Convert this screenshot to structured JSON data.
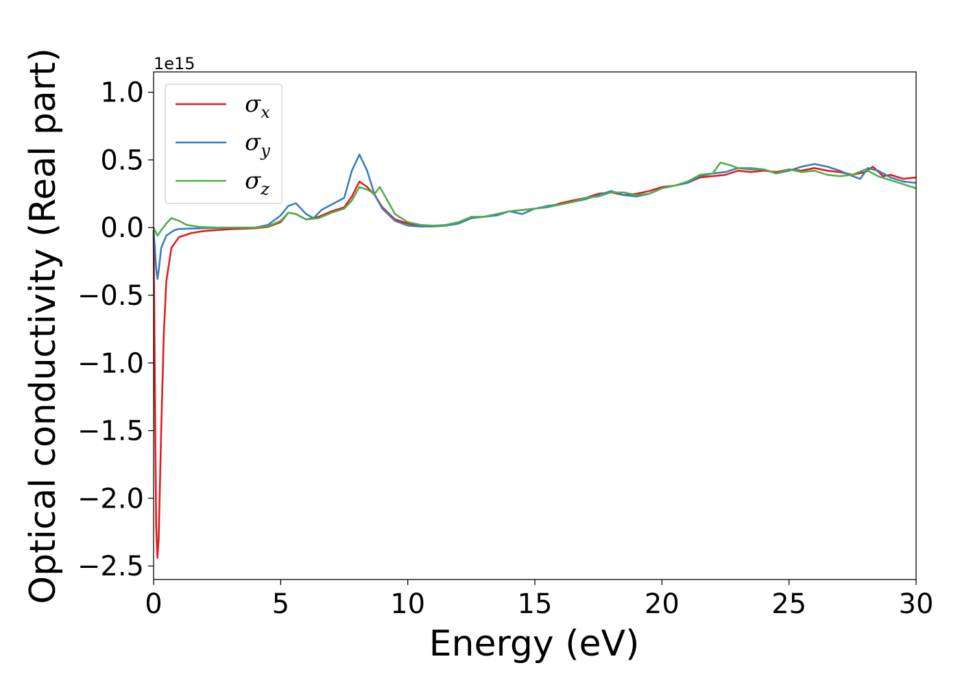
{
  "chart_data": {
    "type": "line",
    "title": "",
    "xlabel": "Energy (eV)",
    "ylabel": "Optical conductivity (Real part)",
    "y_offset_text": "1e15",
    "xlim": [
      0,
      30
    ],
    "ylim": [
      -2.6,
      1.15
    ],
    "x_ticks": [
      0,
      5,
      10,
      15,
      20,
      25,
      30
    ],
    "x_tick_labels": [
      "0",
      "5",
      "10",
      "15",
      "20",
      "25",
      "30"
    ],
    "y_ticks": [
      1.0,
      0.5,
      0.0,
      -0.5,
      -1.0,
      -1.5,
      -2.0,
      -2.5
    ],
    "y_tick_labels": [
      "1.0",
      "0.5",
      "0.0",
      "−0.5",
      "−1.0",
      "−1.5",
      "−2.0",
      "−2.5"
    ],
    "grid": false,
    "legend_position": "top-left",
    "series": [
      {
        "name": "σ",
        "subscript": "x",
        "color": "#e41a1c",
        "points": [
          [
            0,
            -0.02
          ],
          [
            0.05,
            -1.2
          ],
          [
            0.1,
            -2.2
          ],
          [
            0.15,
            -2.44
          ],
          [
            0.2,
            -2.3
          ],
          [
            0.3,
            -1.5
          ],
          [
            0.4,
            -0.8
          ],
          [
            0.5,
            -0.4
          ],
          [
            0.7,
            -0.15
          ],
          [
            1.0,
            -0.07
          ],
          [
            1.5,
            -0.04
          ],
          [
            2,
            -0.025
          ],
          [
            3,
            -0.012
          ],
          [
            4,
            -0.005
          ],
          [
            4.5,
            0.005
          ],
          [
            5,
            0.04
          ],
          [
            5.3,
            0.11
          ],
          [
            5.6,
            0.1
          ],
          [
            6,
            0.06
          ],
          [
            6.5,
            0.08
          ],
          [
            7,
            0.12
          ],
          [
            7.5,
            0.15
          ],
          [
            7.8,
            0.23
          ],
          [
            8.1,
            0.34
          ],
          [
            8.4,
            0.3
          ],
          [
            8.7,
            0.24
          ],
          [
            9,
            0.15
          ],
          [
            9.5,
            0.06
          ],
          [
            10,
            0.03
          ],
          [
            10.5,
            0.015
          ],
          [
            11,
            0.01
          ],
          [
            11.5,
            0.015
          ],
          [
            12,
            0.03
          ],
          [
            12.5,
            0.07
          ],
          [
            13,
            0.08
          ],
          [
            13.5,
            0.1
          ],
          [
            14,
            0.12
          ],
          [
            14.5,
            0.13
          ],
          [
            15,
            0.14
          ],
          [
            15.5,
            0.15
          ],
          [
            16,
            0.18
          ],
          [
            16.5,
            0.2
          ],
          [
            17,
            0.22
          ],
          [
            17.5,
            0.25
          ],
          [
            18,
            0.26
          ],
          [
            18.5,
            0.24
          ],
          [
            19,
            0.25
          ],
          [
            19.5,
            0.27
          ],
          [
            20,
            0.3
          ],
          [
            20.5,
            0.31
          ],
          [
            21,
            0.33
          ],
          [
            21.5,
            0.37
          ],
          [
            22,
            0.38
          ],
          [
            22.5,
            0.39
          ],
          [
            23,
            0.42
          ],
          [
            23.5,
            0.41
          ],
          [
            24,
            0.42
          ],
          [
            24.5,
            0.41
          ],
          [
            25,
            0.43
          ],
          [
            25.5,
            0.42
          ],
          [
            26,
            0.44
          ],
          [
            26.5,
            0.42
          ],
          [
            27,
            0.41
          ],
          [
            27.5,
            0.39
          ],
          [
            28,
            0.41
          ],
          [
            28.3,
            0.45
          ],
          [
            28.7,
            0.38
          ],
          [
            29,
            0.39
          ],
          [
            29.5,
            0.36
          ],
          [
            30,
            0.37
          ]
        ]
      },
      {
        "name": "σ",
        "subscript": "y",
        "color": "#377eb8",
        "points": [
          [
            0,
            -0.02
          ],
          [
            0.05,
            -0.15
          ],
          [
            0.1,
            -0.3
          ],
          [
            0.15,
            -0.38
          ],
          [
            0.2,
            -0.32
          ],
          [
            0.3,
            -0.15
          ],
          [
            0.5,
            -0.06
          ],
          [
            0.8,
            -0.02
          ],
          [
            1.0,
            -0.01
          ],
          [
            2,
            -0.005
          ],
          [
            3,
            -0.002
          ],
          [
            4,
            0.0
          ],
          [
            4.5,
            0.02
          ],
          [
            5,
            0.09
          ],
          [
            5.3,
            0.16
          ],
          [
            5.6,
            0.18
          ],
          [
            6,
            0.1
          ],
          [
            6.3,
            0.07
          ],
          [
            6.6,
            0.13
          ],
          [
            7,
            0.17
          ],
          [
            7.5,
            0.22
          ],
          [
            7.8,
            0.42
          ],
          [
            8.1,
            0.54
          ],
          [
            8.4,
            0.42
          ],
          [
            8.7,
            0.24
          ],
          [
            9,
            0.14
          ],
          [
            9.5,
            0.05
          ],
          [
            10,
            0.015
          ],
          [
            10.5,
            0.008
          ],
          [
            11,
            0.008
          ],
          [
            11.5,
            0.015
          ],
          [
            12,
            0.03
          ],
          [
            12.5,
            0.07
          ],
          [
            13,
            0.08
          ],
          [
            13.5,
            0.09
          ],
          [
            14,
            0.12
          ],
          [
            14.5,
            0.1
          ],
          [
            15,
            0.14
          ],
          [
            15.5,
            0.16
          ],
          [
            16,
            0.17
          ],
          [
            16.5,
            0.19
          ],
          [
            17,
            0.21
          ],
          [
            17.5,
            0.24
          ],
          [
            18,
            0.27
          ],
          [
            18.5,
            0.24
          ],
          [
            19,
            0.23
          ],
          [
            19.5,
            0.25
          ],
          [
            20,
            0.29
          ],
          [
            20.5,
            0.31
          ],
          [
            21,
            0.33
          ],
          [
            21.5,
            0.38
          ],
          [
            22,
            0.4
          ],
          [
            22.5,
            0.41
          ],
          [
            23,
            0.44
          ],
          [
            23.5,
            0.43
          ],
          [
            24,
            0.43
          ],
          [
            24.5,
            0.4
          ],
          [
            25,
            0.42
          ],
          [
            25.5,
            0.45
          ],
          [
            26,
            0.47
          ],
          [
            26.5,
            0.45
          ],
          [
            27,
            0.42
          ],
          [
            27.5,
            0.38
          ],
          [
            27.8,
            0.36
          ],
          [
            28.1,
            0.44
          ],
          [
            28.5,
            0.42
          ],
          [
            29,
            0.37
          ],
          [
            29.5,
            0.34
          ],
          [
            30,
            0.33
          ]
        ]
      },
      {
        "name": "σ",
        "subscript": "z",
        "color": "#4daf4a",
        "points": [
          [
            0,
            0.0
          ],
          [
            0.05,
            -0.02
          ],
          [
            0.15,
            -0.06
          ],
          [
            0.3,
            -0.02
          ],
          [
            0.5,
            0.03
          ],
          [
            0.7,
            0.07
          ],
          [
            1.0,
            0.05
          ],
          [
            1.3,
            0.02
          ],
          [
            1.8,
            0.005
          ],
          [
            2.5,
            0.0
          ],
          [
            3,
            0.0
          ],
          [
            4,
            0.0
          ],
          [
            4.5,
            0.01
          ],
          [
            5,
            0.05
          ],
          [
            5.3,
            0.11
          ],
          [
            5.6,
            0.1
          ],
          [
            6,
            0.06
          ],
          [
            6.5,
            0.07
          ],
          [
            7,
            0.11
          ],
          [
            7.5,
            0.14
          ],
          [
            7.8,
            0.2
          ],
          [
            8.1,
            0.3
          ],
          [
            8.4,
            0.28
          ],
          [
            8.7,
            0.25
          ],
          [
            8.9,
            0.3
          ],
          [
            9.2,
            0.2
          ],
          [
            9.5,
            0.1
          ],
          [
            10,
            0.04
          ],
          [
            10.5,
            0.02
          ],
          [
            11,
            0.015
          ],
          [
            11.5,
            0.02
          ],
          [
            12,
            0.04
          ],
          [
            12.5,
            0.08
          ],
          [
            13,
            0.08
          ],
          [
            13.5,
            0.1
          ],
          [
            14,
            0.12
          ],
          [
            14.5,
            0.13
          ],
          [
            15,
            0.14
          ],
          [
            15.5,
            0.15
          ],
          [
            16,
            0.17
          ],
          [
            16.5,
            0.19
          ],
          [
            17,
            0.22
          ],
          [
            17.5,
            0.23
          ],
          [
            18,
            0.26
          ],
          [
            18.5,
            0.26
          ],
          [
            19,
            0.24
          ],
          [
            19.5,
            0.25
          ],
          [
            20,
            0.29
          ],
          [
            20.5,
            0.31
          ],
          [
            21,
            0.34
          ],
          [
            21.5,
            0.39
          ],
          [
            22,
            0.4
          ],
          [
            22.3,
            0.48
          ],
          [
            22.7,
            0.46
          ],
          [
            23,
            0.44
          ],
          [
            23.5,
            0.44
          ],
          [
            24,
            0.43
          ],
          [
            24.5,
            0.4
          ],
          [
            25,
            0.43
          ],
          [
            25.5,
            0.41
          ],
          [
            26,
            0.42
          ],
          [
            26.5,
            0.39
          ],
          [
            27,
            0.38
          ],
          [
            27.5,
            0.39
          ],
          [
            28,
            0.43
          ],
          [
            28.5,
            0.38
          ],
          [
            29,
            0.35
          ],
          [
            29.5,
            0.32
          ],
          [
            30,
            0.29
          ]
        ]
      }
    ]
  }
}
